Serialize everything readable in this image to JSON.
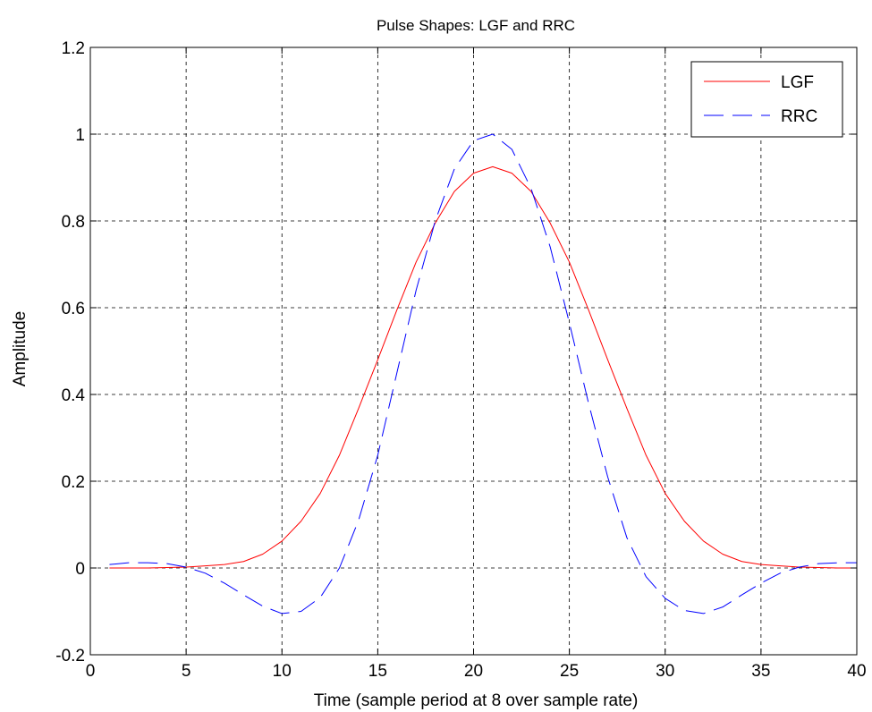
{
  "chart_data": {
    "type": "line",
    "title": "Pulse Shapes: LGF and RRC",
    "xlabel": "Time (sample period at 8 over sample rate)",
    "ylabel": "Amplitude",
    "xlim": [
      0,
      40
    ],
    "ylim": [
      -0.2,
      1.2
    ],
    "xticks": [
      0,
      5,
      10,
      15,
      20,
      25,
      30,
      35,
      40
    ],
    "yticks": [
      -0.2,
      0,
      0.2,
      0.4,
      0.6,
      0.8,
      1,
      1.2
    ],
    "xtick_labels": [
      "0",
      "5",
      "10",
      "15",
      "20",
      "25",
      "30",
      "35",
      "40"
    ],
    "ytick_labels": [
      "-0.2",
      "0",
      "0.2",
      "0.4",
      "0.6",
      "0.8",
      "1",
      "1.2"
    ],
    "grid": true,
    "legend_position": "top-right",
    "series": [
      {
        "name": "LGF",
        "color": "#ff0000",
        "style": "solid",
        "x": [
          1,
          2,
          3,
          4,
          5,
          6,
          7,
          8,
          9,
          10,
          11,
          12,
          13,
          14,
          15,
          16,
          17,
          18,
          19,
          20,
          21,
          22,
          23,
          24,
          25,
          26,
          27,
          28,
          29,
          30,
          31,
          32,
          33,
          34,
          35,
          36,
          37,
          38,
          39,
          40
        ],
        "y": [
          0,
          0,
          0,
          0.001,
          0.002,
          0.005,
          0.008,
          0.015,
          0.032,
          0.062,
          0.108,
          0.172,
          0.26,
          0.368,
          0.48,
          0.595,
          0.705,
          0.795,
          0.868,
          0.91,
          0.925,
          0.91,
          0.868,
          0.795,
          0.705,
          0.595,
          0.48,
          0.368,
          0.26,
          0.172,
          0.108,
          0.062,
          0.032,
          0.015,
          0.008,
          0.005,
          0.002,
          0.001,
          0,
          0
        ]
      },
      {
        "name": "RRC",
        "color": "#0000ff",
        "style": "dashed",
        "x": [
          1,
          2,
          3,
          4,
          5,
          6,
          7,
          8,
          9,
          10,
          11,
          12,
          13,
          14,
          15,
          16,
          17,
          18,
          19,
          20,
          21,
          22,
          23,
          24,
          25,
          26,
          27,
          28,
          29,
          30,
          31,
          32,
          33,
          34,
          35,
          36,
          37,
          38,
          39,
          40
        ],
        "y": [
          0.008,
          0.012,
          0.012,
          0.01,
          0.002,
          -0.012,
          -0.035,
          -0.062,
          -0.088,
          -0.105,
          -0.1,
          -0.068,
          0.0,
          0.11,
          0.26,
          0.45,
          0.64,
          0.8,
          0.92,
          0.985,
          1.0,
          0.965,
          0.875,
          0.74,
          0.565,
          0.38,
          0.21,
          0.07,
          -0.02,
          -0.07,
          -0.098,
          -0.105,
          -0.09,
          -0.062,
          -0.035,
          -0.012,
          0.002,
          0.01,
          0.012,
          0.012
        ]
      }
    ]
  }
}
